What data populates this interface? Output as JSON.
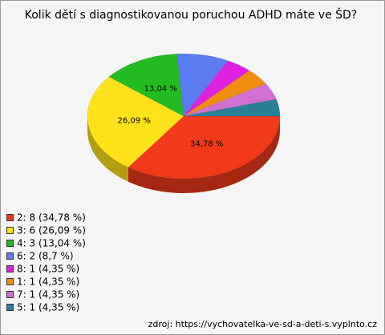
{
  "chart_data": {
    "type": "pie3d",
    "title": "Kolik dětí s diagnostikovanou poruchou ADHD máte ve ŠD?",
    "categories": [
      "2: 8 (34,78 %)",
      "3: 6 (26,09 %)",
      "4: 3 (13,04 %)",
      "6: 2 (8,7 %)",
      "8: 1 (4,35 %)",
      "1: 1 (4,35 %)",
      "7: 1 (4,35 %)",
      "5: 1 (4,35 %)"
    ],
    "values": [
      34.78,
      26.09,
      13.04,
      8.7,
      4.35,
      4.35,
      4.35,
      4.35
    ],
    "value_labels": [
      "34,78 %",
      "26,09 %",
      "13,04 %",
      null,
      null,
      null,
      null,
      null
    ],
    "colors": [
      "#f03a1a",
      "#ffe21a",
      "#22bb22",
      "#5a7cf0",
      "#e020e0",
      "#f08c10",
      "#d070d0",
      "#2a7f98"
    ],
    "source": "zdroj: https://vychovatelka-ve-sd-a-deti-s.vyplnto.cz"
  }
}
